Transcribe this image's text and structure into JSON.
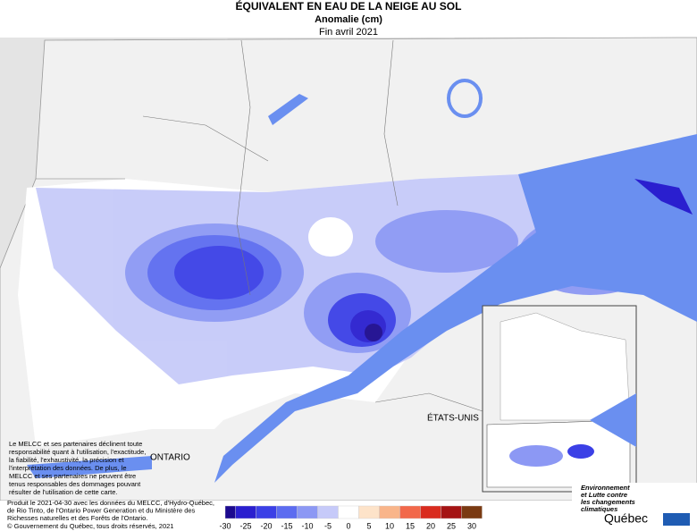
{
  "header": {
    "title": "ÉQUIVALENT EN EAU DE LA NEIGE AU SOL",
    "subtitle": "Anomalie (cm)",
    "date": "Fin avril 2021"
  },
  "map_labels": {
    "ontario": "ONTARIO",
    "usa": "ÉTATS-UNIS"
  },
  "disclaimer": [
    "Le MELCC et ses partenaires déclinent toute",
    "responsabilité quant à l'utilisation, l'exactitude,",
    "la fiabilité, l'exhaustivité, la précision et",
    "l'interprétation des données. De plus, le",
    "MELCC et ses partenaires ne peuvent être",
    "tenus responsables des dommages pouvant",
    "résulter de l'utilisation de cette carte."
  ],
  "credits": [
    "Produit le 2021-04-30 avec les données du MELCC, d'Hydro-Québec,",
    "de Rio Tinto, de l'Ontario Power Generation et du Ministère des",
    "Richesses naturelles et des Forêts de l'Ontario."
  ],
  "copyright": "© Gouvernement du Québec, tous droits réservés, 2021",
  "logo": {
    "lines": [
      "Environnement",
      "et Lutte contre",
      "les changements",
      "climatiques"
    ],
    "name": "Québec"
  },
  "legend": {
    "ticks": [
      -30,
      -25,
      -20,
      -15,
      -10,
      -5,
      0,
      5,
      10,
      15,
      20,
      25,
      30
    ],
    "colors": [
      "#1c0a8f",
      "#2a1fcf",
      "#3b40e6",
      "#5c6cf0",
      "#8c98f4",
      "#c6caf9",
      "#ffffff",
      "#fde3c9",
      "#f9b58a",
      "#f2684a",
      "#d92b1e",
      "#a51414",
      "#7a3a12"
    ]
  }
}
